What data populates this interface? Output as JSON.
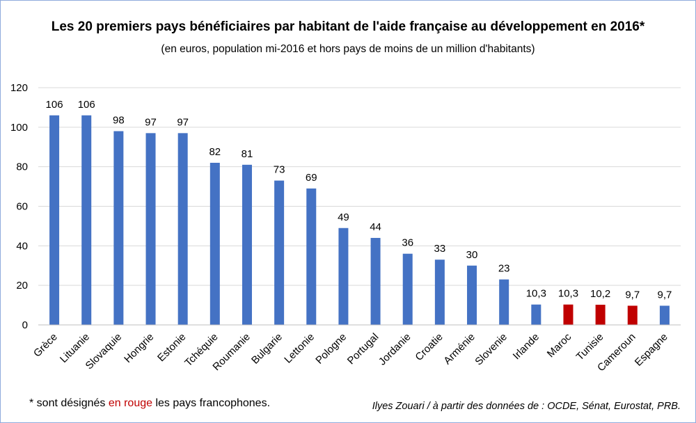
{
  "chart_data": {
    "type": "bar",
    "title": "Les 20 premiers pays bénéficiaires par habitant de l'aide française au développement en 2016*",
    "subtitle": "(en euros, population mi-2016 et hors pays de moins de un million d'habitants)",
    "categories": [
      "Grèce",
      "Lituanie",
      "Slovaquie",
      "Hongrie",
      "Estonie",
      "Tchéquie",
      "Roumanie",
      "Bulgarie",
      "Lettonie",
      "Pologne",
      "Portugal",
      "Jordanie",
      "Croatie",
      "Arménie",
      "Slovenie",
      "Irlande",
      "Maroc",
      "Tunisie",
      "Cameroun",
      "Espagne"
    ],
    "values": [
      106,
      106,
      98,
      97,
      97,
      82,
      81,
      73,
      69,
      49,
      44,
      36,
      33,
      30,
      23,
      10.3,
      10.3,
      10.2,
      9.7,
      9.7
    ],
    "data_labels": [
      "106",
      "106",
      "98",
      "97",
      "97",
      "82",
      "81",
      "73",
      "69",
      "49",
      "44",
      "36",
      "33",
      "30",
      "23",
      "10,3",
      "10,3",
      "10,2",
      "9,7",
      "9,7"
    ],
    "francophone": [
      false,
      false,
      false,
      false,
      false,
      false,
      false,
      false,
      false,
      false,
      false,
      false,
      false,
      false,
      false,
      false,
      true,
      true,
      true,
      false
    ],
    "ylim": [
      0,
      120
    ],
    "yticks": [
      0,
      20,
      40,
      60,
      80,
      100,
      120
    ],
    "grid": true,
    "xlabel": "",
    "ylabel": "",
    "colors": {
      "default": "#4472c4",
      "francophone": "#c00000",
      "grid": "#d9d9d9"
    }
  },
  "footnote": {
    "prefix": "* sont désignés ",
    "highlight": "en rouge",
    "suffix": " les pays francophones."
  },
  "source": "Ilyes Zouari / à partir des données de : OCDE, Sénat, Eurostat, PRB."
}
